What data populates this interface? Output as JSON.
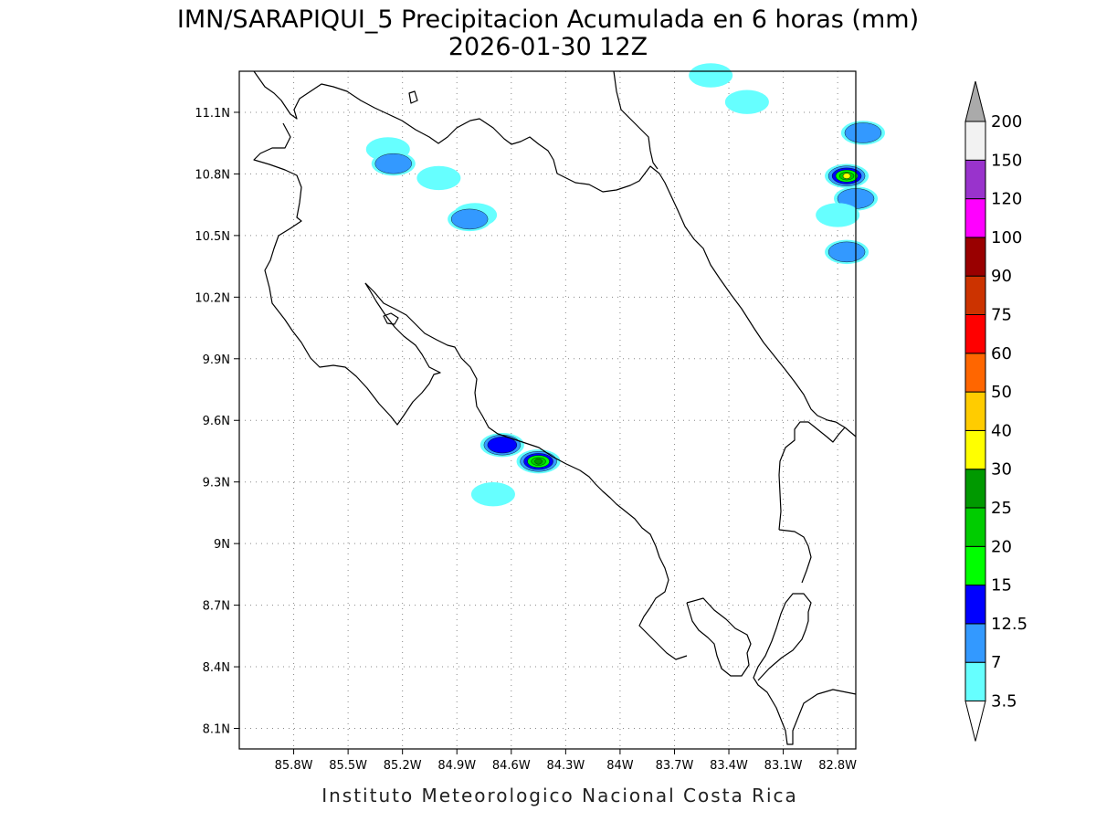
{
  "title": {
    "line1": "IMN/SARAPIQUI_5 Precipitacion Acumulada en 6 horas (mm)",
    "line2": "2026-01-30 12Z"
  },
  "footer": "Instituto Meteorologico Nacional Costa Rica",
  "map": {
    "lon_range": [
      -86.1,
      -82.7
    ],
    "lat_range": [
      8.0,
      11.3
    ],
    "lon_ticks": [
      {
        "value": -85.8,
        "label": "85.8W"
      },
      {
        "value": -85.5,
        "label": "85.5W"
      },
      {
        "value": -85.2,
        "label": "85.2W"
      },
      {
        "value": -84.9,
        "label": "84.9W"
      },
      {
        "value": -84.6,
        "label": "84.6W"
      },
      {
        "value": -84.3,
        "label": "84.3W"
      },
      {
        "value": -84.0,
        "label": "84W"
      },
      {
        "value": -83.7,
        "label": "83.7W"
      },
      {
        "value": -83.4,
        "label": "83.4W"
      },
      {
        "value": -83.1,
        "label": "83.1W"
      },
      {
        "value": -82.8,
        "label": "82.8W"
      }
    ],
    "lat_ticks": [
      {
        "value": 11.1,
        "label": "11.1N"
      },
      {
        "value": 10.8,
        "label": "10.8N"
      },
      {
        "value": 10.5,
        "label": "10.5N"
      },
      {
        "value": 10.2,
        "label": "10.2N"
      },
      {
        "value": 9.9,
        "label": "9.9N"
      },
      {
        "value": 9.6,
        "label": "9.6N"
      },
      {
        "value": 9.3,
        "label": "9.3N"
      },
      {
        "value": 9.0,
        "label": "9N"
      },
      {
        "value": 8.7,
        "label": "8.7N"
      },
      {
        "value": 8.4,
        "label": "8.4N"
      },
      {
        "value": 8.1,
        "label": "8.1N"
      }
    ],
    "grid": true,
    "precip_cells": [
      {
        "lon": -85.28,
        "lat": 10.92,
        "mm": 3.5
      },
      {
        "lon": -85.25,
        "lat": 10.85,
        "mm": 7
      },
      {
        "lon": -85.0,
        "lat": 10.78,
        "mm": 3.5
      },
      {
        "lon": -84.8,
        "lat": 10.6,
        "mm": 3.5
      },
      {
        "lon": -84.83,
        "lat": 10.58,
        "mm": 7
      },
      {
        "lon": -84.65,
        "lat": 9.48,
        "mm": 12.5
      },
      {
        "lon": -84.45,
        "lat": 9.4,
        "mm": 25
      },
      {
        "lon": -84.7,
        "lat": 9.24,
        "mm": 3.5
      },
      {
        "lon": -82.75,
        "lat": 10.79,
        "mm": 30
      },
      {
        "lon": -82.7,
        "lat": 10.68,
        "mm": 7
      },
      {
        "lon": -82.8,
        "lat": 10.6,
        "mm": 3.5
      },
      {
        "lon": -82.75,
        "lat": 10.42,
        "mm": 7
      },
      {
        "lon": -82.66,
        "lat": 11.0,
        "mm": 7
      },
      {
        "lon": -83.3,
        "lat": 11.15,
        "mm": 3.5
      },
      {
        "lon": -83.5,
        "lat": 11.28,
        "mm": 3.5
      }
    ]
  },
  "colorbar": {
    "levels": [
      "3.5",
      "7",
      "12.5",
      "15",
      "20",
      "25",
      "30",
      "40",
      "50",
      "60",
      "75",
      "90",
      "100",
      "120",
      "150",
      "200"
    ],
    "colors": [
      "#66ffff",
      "#3399ff",
      "#0000ff",
      "#00ff00",
      "#00cc00",
      "#009900",
      "#ffff00",
      "#ffcc00",
      "#ff6600",
      "#ff0000",
      "#cc3300",
      "#990000",
      "#ff00ff",
      "#9933cc",
      "#f2f2f2"
    ],
    "under_color": "#ffffff",
    "over_color": "#aaaaaa"
  }
}
